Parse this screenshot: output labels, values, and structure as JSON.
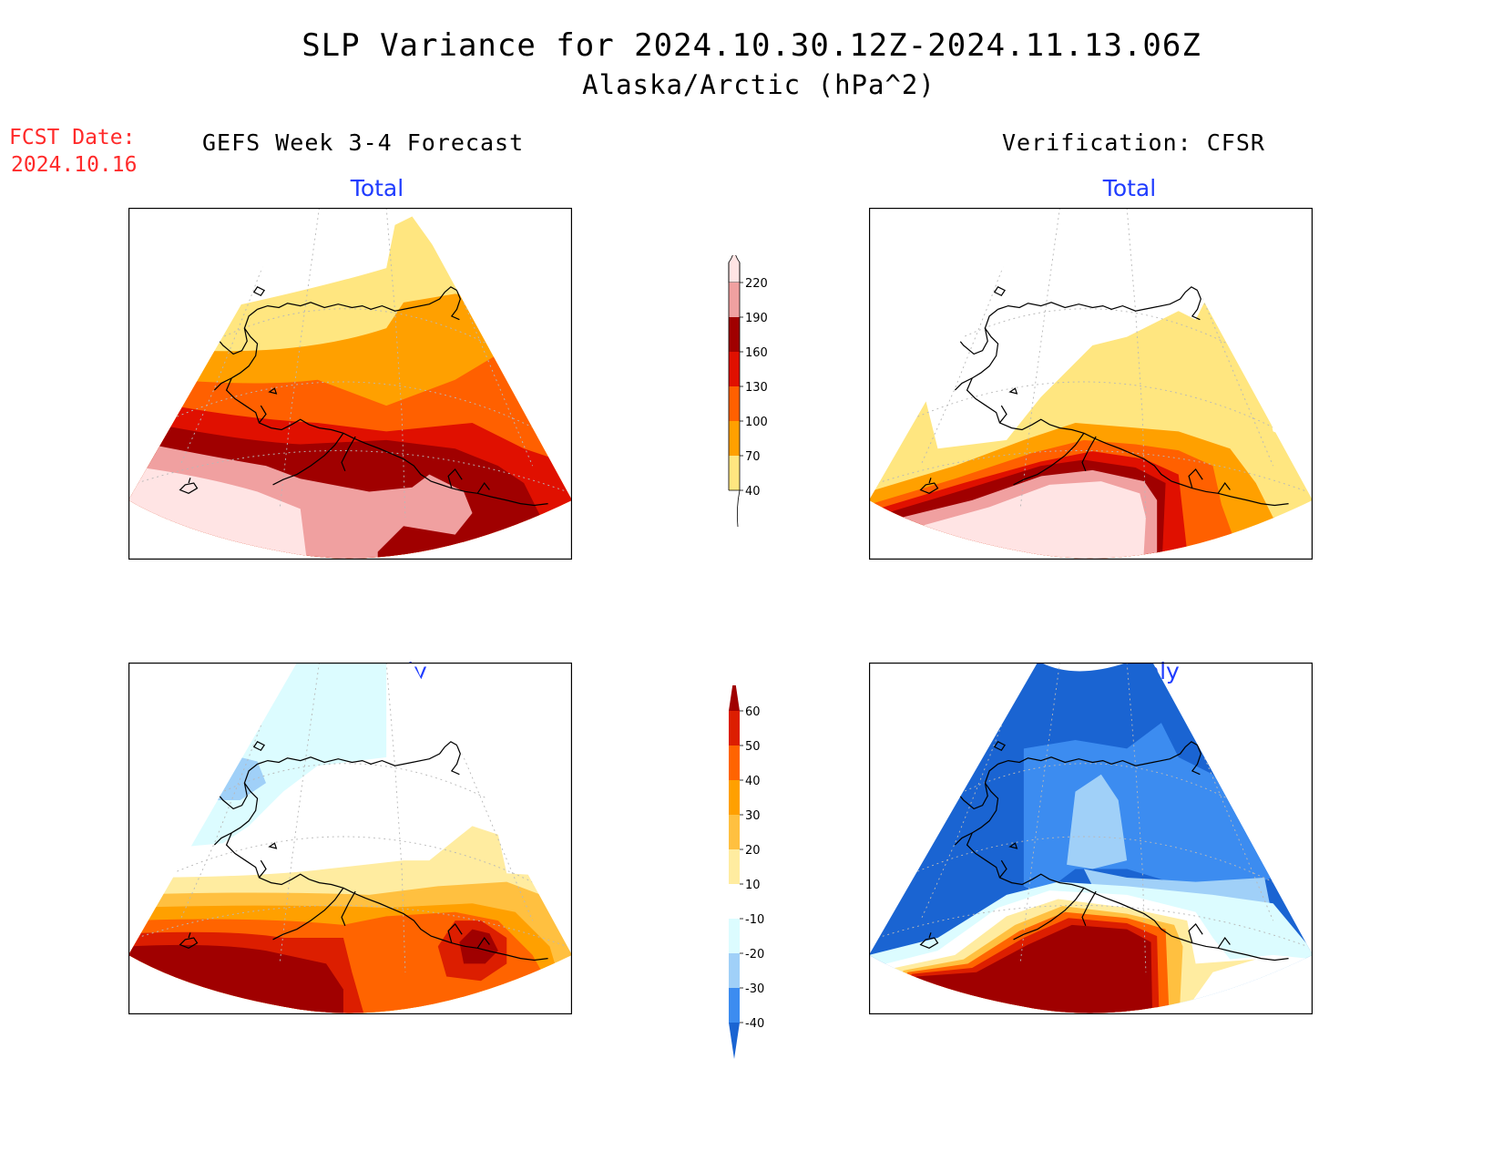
{
  "title": "SLP Variance for 2024.10.30.12Z-2024.11.13.06Z",
  "subtitle": "Alaska/Arctic (hPa^2)",
  "fcst_date_label": "FCST Date:",
  "fcst_date_value": "2024.10.16",
  "left_column_title": "GEFS Week 3-4 Forecast",
  "right_column_title": "Verification: CFSR",
  "panels": {
    "forecast_total_title": "Total",
    "verification_total_title": "Total",
    "forecast_anomaly_title": "Anomaly",
    "verification_anomaly_title": "Anomaly"
  },
  "total_colorbar": {
    "levels": [
      "40",
      "70",
      "100",
      "130",
      "160",
      "190",
      "220"
    ],
    "colors": [
      "#ffe680",
      "#ffa000",
      "#ff6000",
      "#e01000",
      "#a00000",
      "#f0a0a0",
      "#ffe4e4"
    ]
  },
  "anomaly_colorbar": {
    "levels": [
      "-40",
      "-30",
      "-20",
      "-10",
      "10",
      "20",
      "30",
      "40",
      "50",
      "60"
    ],
    "colors": [
      "#1a64d2",
      "#3c8cf0",
      "#a0d0f8",
      "#dcfcff",
      "#ffffff",
      "#ffeca0",
      "#ffc040",
      "#ffa000",
      "#ff6400",
      "#dc1e00",
      "#a00000"
    ]
  }
}
